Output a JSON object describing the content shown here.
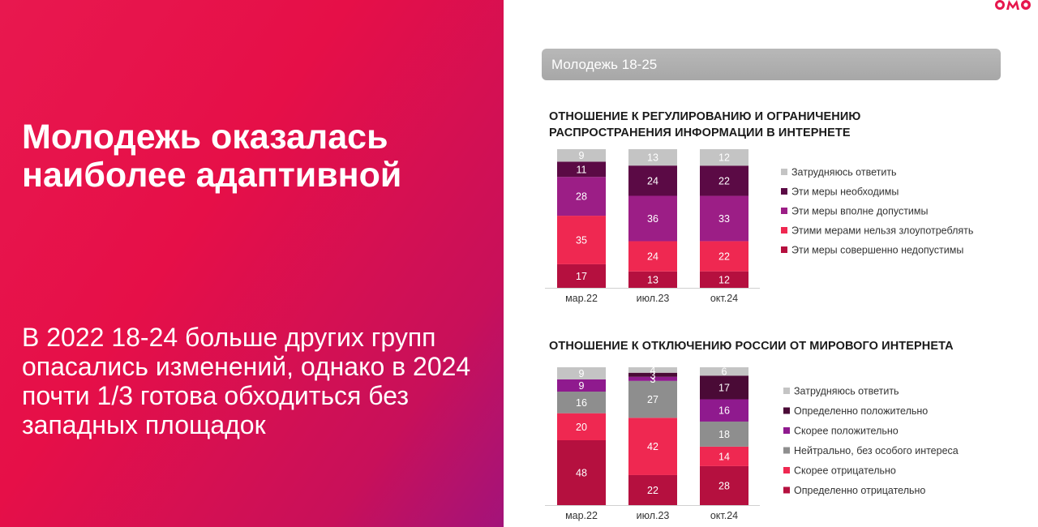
{
  "slide": {
    "headline": "Молодежь оказалась наиболее адаптивной",
    "subtext": "В 2022 18-24 больше других групп опасались изменений, однако в 2024 почти 1/3 готова обходиться без западных площадок",
    "section_label": "Молодежь 18-25",
    "logo_text": "ФОМ"
  },
  "colors": {
    "panel": "#e6174d",
    "grey": "#c4c4c4",
    "dark_purple": "#5b0a45",
    "purple": "#9c1e86",
    "pink_red": "#ef2851",
    "crimson": "#b5103f",
    "mid_grey": "#8e8e8e",
    "deep_purple": "#4a0a36",
    "violet": "#8f1a8e"
  },
  "chart_data": [
    {
      "type": "bar",
      "stacked": true,
      "title": "ОТНОШЕНИЕ К РЕГУЛИРОВАНИЮ И ОГРАНИЧЕНИЮ РАСПРОСТРАНЕНИЯ ИНФОРМАЦИИ В ИНТЕРНЕТЕ",
      "categories": [
        "мар.22",
        "июл.23",
        "окт.24"
      ],
      "legend_position": "right",
      "series": [
        {
          "name": "Эти меры совершенно недопустимы",
          "color": "#b5103f",
          "values": [
            17,
            13,
            12
          ]
        },
        {
          "name": "Этими мерами нельзя злоупотреблять",
          "color": "#ef2851",
          "values": [
            35,
            24,
            22
          ]
        },
        {
          "name": "Эти меры вполне допустимы",
          "color": "#9c1e86",
          "values": [
            28,
            36,
            33
          ]
        },
        {
          "name": "Эти меры необходимы",
          "color": "#5b0a45",
          "values": [
            11,
            24,
            22
          ]
        },
        {
          "name": "Затрудняюсь ответить",
          "color": "#c4c4c4",
          "values": [
            9,
            13,
            12
          ]
        }
      ]
    },
    {
      "type": "bar",
      "stacked": true,
      "title": "ОТНОШЕНИЕ К ОТКЛЮЧЕНИЮ РОССИИ ОТ МИРОВОГО ИНТЕРНЕТА",
      "categories": [
        "мар.22",
        "июл.23",
        "окт.24"
      ],
      "legend_position": "right",
      "series": [
        {
          "name": "Определенно отрицательно",
          "color": "#b5103f",
          "values": [
            48,
            22,
            28
          ]
        },
        {
          "name": "Скорее отрицательно",
          "color": "#ef2851",
          "values": [
            20,
            42,
            14
          ]
        },
        {
          "name": "Нейтрально, без особого интереса",
          "color": "#8e8e8e",
          "values": [
            16,
            27,
            18
          ]
        },
        {
          "name": "Скорее положительно",
          "color": "#8f1a8e",
          "values": [
            9,
            3,
            16
          ]
        },
        {
          "name": "Определенно положительно",
          "color": "#4a0a36",
          "values": [
            0,
            3,
            17
          ]
        },
        {
          "name": "Затрудняюсь ответить",
          "color": "#c4c4c4",
          "values": [
            9,
            4,
            6
          ]
        }
      ]
    }
  ]
}
